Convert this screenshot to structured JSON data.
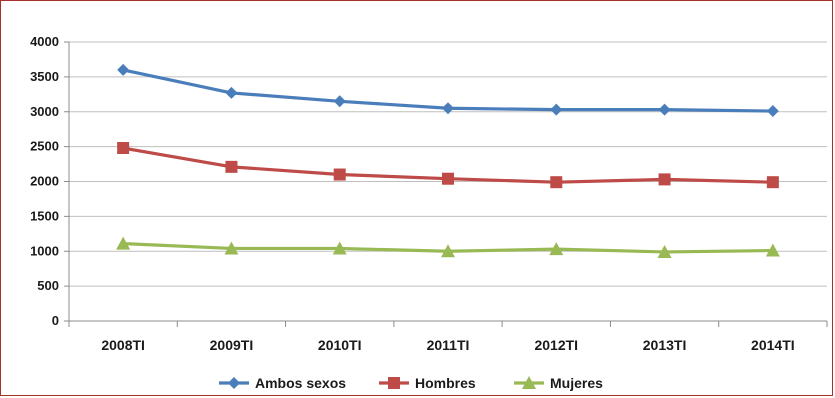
{
  "chart_data": {
    "type": "line",
    "categories": [
      "2008TI",
      "2009TI",
      "2010TI",
      "2011TI",
      "2012TI",
      "2013TI",
      "2014TI"
    ],
    "ylim": [
      0,
      4000
    ],
    "yticks": [
      0,
      500,
      1000,
      1500,
      2000,
      2500,
      3000,
      3500,
      4000
    ],
    "grid": true,
    "legend_position": "bottom",
    "series": [
      {
        "name": "Ambos sexos",
        "color": "#4a7ebb",
        "marker": "diamond",
        "values": [
          3600,
          3270,
          3150,
          3050,
          3030,
          3030,
          3010
        ]
      },
      {
        "name": "Hombres",
        "color": "#be4b48",
        "marker": "square",
        "values": [
          2480,
          2210,
          2100,
          2040,
          1990,
          2030,
          1990
        ]
      },
      {
        "name": "Mujeres",
        "color": "#98b954",
        "marker": "triangle",
        "values": [
          1110,
          1040,
          1040,
          1000,
          1030,
          990,
          1010
        ]
      }
    ]
  }
}
